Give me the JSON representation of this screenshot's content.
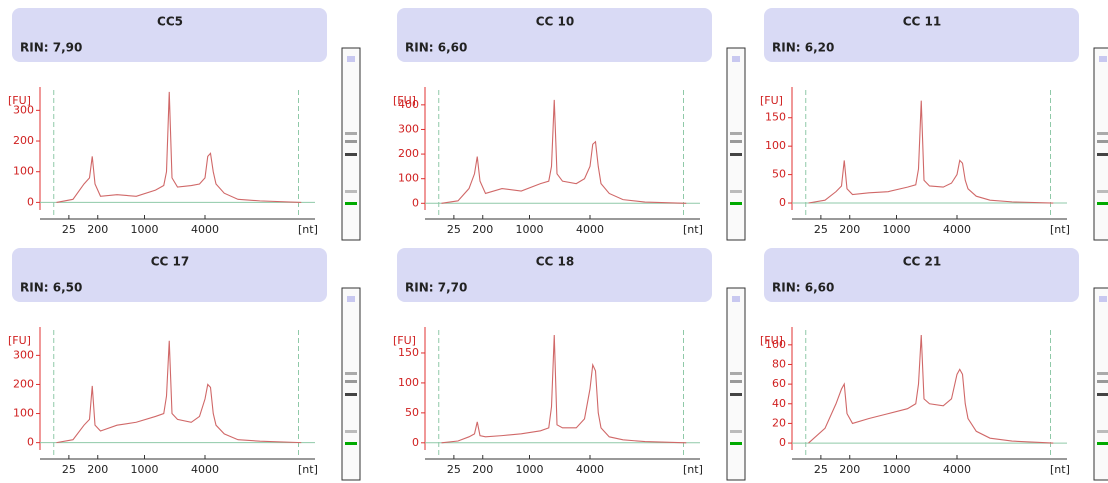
{
  "chart_data": [
    {
      "type": "line",
      "title": "CC5",
      "subtitle": "RIN: 7,90",
      "ylabel": "[FU]",
      "xlabel": "[nt]",
      "color": "#d06868",
      "x": [
        6,
        12,
        16,
        18,
        19,
        20,
        22,
        28,
        35,
        42,
        45,
        46,
        47,
        48,
        50,
        55,
        58,
        60,
        61,
        62,
        63,
        64,
        67,
        72,
        80,
        95
      ],
      "values": [
        0,
        10,
        60,
        80,
        150,
        60,
        20,
        25,
        20,
        40,
        55,
        100,
        360,
        80,
        50,
        55,
        60,
        80,
        150,
        160,
        100,
        60,
        30,
        10,
        5,
        0
      ],
      "xlim": [
        0,
        100
      ],
      "xticks": [
        {
          "value": 10.5,
          "label": "25"
        },
        {
          "value": 21,
          "label": "200"
        },
        {
          "value": 38,
          "label": "1000"
        },
        {
          "value": 60,
          "label": "4000"
        }
      ],
      "ylim": [
        -15,
        350
      ],
      "yticks": [
        0,
        100,
        200,
        300
      ]
    },
    {
      "type": "line",
      "title": "CC 10",
      "subtitle": "RIN: 6,60",
      "ylabel": "[FU]",
      "xlabel": "[nt]",
      "color": "#d06868",
      "x": [
        6,
        12,
        16,
        18,
        19,
        20,
        22,
        28,
        35,
        42,
        45,
        46,
        47,
        48,
        50,
        55,
        58,
        60,
        61,
        62,
        63,
        64,
        67,
        72,
        80,
        95
      ],
      "values": [
        0,
        10,
        60,
        120,
        190,
        90,
        40,
        60,
        50,
        80,
        90,
        150,
        420,
        120,
        90,
        80,
        100,
        150,
        240,
        250,
        150,
        80,
        40,
        15,
        5,
        0
      ],
      "xlim": [
        0,
        100
      ],
      "xticks": [
        {
          "value": 10.5,
          "label": "25"
        },
        {
          "value": 21,
          "label": "200"
        },
        {
          "value": 38,
          "label": "1000"
        },
        {
          "value": 60,
          "label": "4000"
        }
      ],
      "ylim": [
        -15,
        440
      ],
      "yticks": [
        0,
        100,
        200,
        300,
        400
      ]
    },
    {
      "type": "line",
      "title": "CC 11",
      "subtitle": "RIN: 6,20",
      "ylabel": "[FU]",
      "xlabel": "[nt]",
      "color": "#d06868",
      "x": [
        6,
        12,
        16,
        18,
        19,
        20,
        22,
        28,
        35,
        42,
        45,
        46,
        47,
        48,
        50,
        55,
        58,
        60,
        61,
        62,
        63,
        64,
        67,
        72,
        80,
        95
      ],
      "values": [
        0,
        5,
        20,
        30,
        75,
        25,
        15,
        18,
        20,
        28,
        32,
        60,
        180,
        40,
        30,
        28,
        35,
        50,
        75,
        70,
        40,
        25,
        12,
        5,
        2,
        0
      ],
      "xlim": [
        0,
        100
      ],
      "xticks": [
        {
          "value": 10.5,
          "label": "25"
        },
        {
          "value": 21,
          "label": "200"
        },
        {
          "value": 38,
          "label": "1000"
        },
        {
          "value": 60,
          "label": "4000"
        }
      ],
      "ylim": [
        -7,
        190
      ],
      "yticks": [
        0,
        50,
        100,
        150
      ]
    },
    {
      "type": "line",
      "title": "CC 17",
      "subtitle": "RIN: 6,50",
      "ylabel": "[FU]",
      "xlabel": "[nt]",
      "color": "#d06868",
      "x": [
        6,
        12,
        16,
        18,
        19,
        20,
        22,
        28,
        35,
        42,
        45,
        46,
        47,
        48,
        50,
        55,
        58,
        60,
        61,
        62,
        63,
        64,
        67,
        72,
        80,
        95
      ],
      "values": [
        0,
        10,
        60,
        80,
        195,
        60,
        40,
        60,
        70,
        90,
        100,
        160,
        350,
        100,
        80,
        70,
        90,
        150,
        200,
        190,
        100,
        60,
        30,
        10,
        5,
        0
      ],
      "xlim": [
        0,
        100
      ],
      "xticks": [
        {
          "value": 10.5,
          "label": "25"
        },
        {
          "value": 21,
          "label": "200"
        },
        {
          "value": 38,
          "label": "1000"
        },
        {
          "value": 60,
          "label": "4000"
        }
      ],
      "ylim": [
        -15,
        370
      ],
      "yticks": [
        0,
        100,
        200,
        300
      ]
    },
    {
      "type": "line",
      "title": "CC 18",
      "subtitle": "RIN: 7,70",
      "ylabel": "[FU]",
      "xlabel": "[nt]",
      "color": "#d06868",
      "x": [
        6,
        12,
        16,
        18,
        19,
        20,
        22,
        28,
        35,
        42,
        45,
        46,
        47,
        48,
        50,
        55,
        58,
        60,
        61,
        62,
        63,
        64,
        67,
        72,
        80,
        95
      ],
      "values": [
        0,
        3,
        10,
        15,
        35,
        12,
        10,
        12,
        15,
        20,
        25,
        60,
        180,
        30,
        25,
        25,
        40,
        90,
        130,
        120,
        50,
        25,
        10,
        5,
        2,
        0
      ],
      "xlim": [
        0,
        100
      ],
      "xticks": [
        {
          "value": 10.5,
          "label": "25"
        },
        {
          "value": 21,
          "label": "200"
        },
        {
          "value": 38,
          "label": "1000"
        },
        {
          "value": 60,
          "label": "4000"
        }
      ],
      "ylim": [
        -7,
        180
      ],
      "yticks": [
        0,
        50,
        100,
        150
      ]
    },
    {
      "type": "line",
      "title": "CC 21",
      "subtitle": "RIN: 6,60",
      "ylabel": "[FU]",
      "xlabel": "[nt]",
      "color": "#d06868",
      "x": [
        6,
        12,
        16,
        18,
        19,
        20,
        22,
        28,
        35,
        42,
        45,
        46,
        47,
        48,
        50,
        55,
        58,
        60,
        61,
        62,
        63,
        64,
        67,
        72,
        80,
        95
      ],
      "values": [
        0,
        15,
        40,
        55,
        60,
        30,
        20,
        25,
        30,
        35,
        40,
        60,
        110,
        45,
        40,
        38,
        45,
        70,
        75,
        70,
        40,
        25,
        12,
        5,
        2,
        0
      ],
      "xlim": [
        0,
        100
      ],
      "xticks": [
        {
          "value": 10.5,
          "label": "25"
        },
        {
          "value": 21,
          "label": "200"
        },
        {
          "value": 38,
          "label": "1000"
        },
        {
          "value": 60,
          "label": "4000"
        }
      ],
      "ylim": [
        -4,
        110
      ],
      "yticks": [
        0,
        20,
        40,
        60,
        80,
        100
      ]
    }
  ]
}
